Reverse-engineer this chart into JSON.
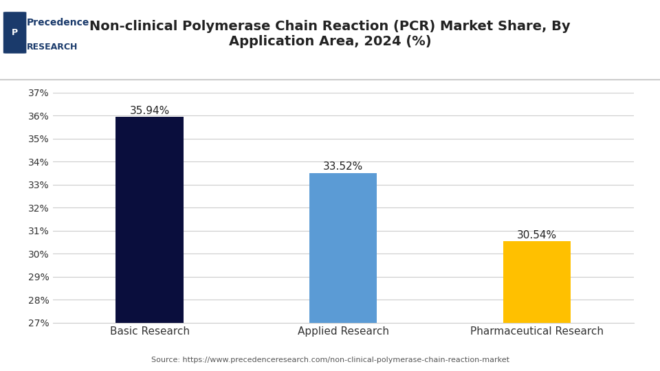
{
  "title": "Non-clinical Polymerase Chain Reaction (PCR) Market Share, By\nApplication Area, 2024 (%)",
  "categories": [
    "Basic Research",
    "Applied Research",
    "Pharmaceutical Research"
  ],
  "values": [
    35.94,
    33.52,
    30.54
  ],
  "labels": [
    "35.94%",
    "33.52%",
    "30.54%"
  ],
  "bar_colors": [
    "#0a0e3d",
    "#5b9bd5",
    "#ffc000"
  ],
  "ylim": [
    27,
    37
  ],
  "yticks": [
    27,
    28,
    29,
    30,
    31,
    32,
    33,
    34,
    35,
    36,
    37
  ],
  "ylabel_format": "{}%",
  "background_color": "#ffffff",
  "plot_bg_color": "#ffffff",
  "grid_color": "#cccccc",
  "source_text": "Source: https://www.precedenceresearch.com/non-clinical-polymerase-chain-reaction-market",
  "title_fontsize": 14,
  "label_fontsize": 11,
  "tick_fontsize": 10,
  "source_fontsize": 8,
  "bar_width": 0.35,
  "logo_text_precedence": "Precedence",
  "logo_text_research": "RESEARCH"
}
